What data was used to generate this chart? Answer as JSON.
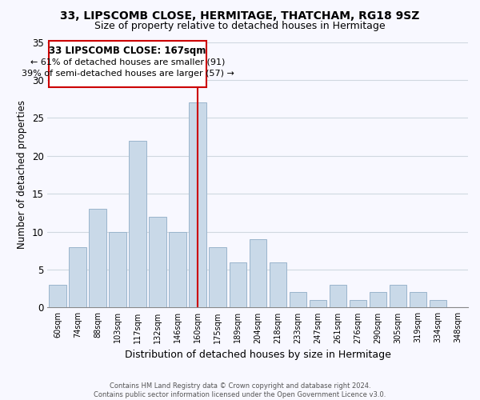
{
  "title": "33, LIPSCOMB CLOSE, HERMITAGE, THATCHAM, RG18 9SZ",
  "subtitle": "Size of property relative to detached houses in Hermitage",
  "xlabel": "Distribution of detached houses by size in Hermitage",
  "ylabel": "Number of detached properties",
  "bar_labels": [
    "60sqm",
    "74sqm",
    "88sqm",
    "103sqm",
    "117sqm",
    "132sqm",
    "146sqm",
    "160sqm",
    "175sqm",
    "189sqm",
    "204sqm",
    "218sqm",
    "233sqm",
    "247sqm",
    "261sqm",
    "276sqm",
    "290sqm",
    "305sqm",
    "319sqm",
    "334sqm",
    "348sqm"
  ],
  "bar_values": [
    3,
    8,
    13,
    10,
    22,
    12,
    10,
    27,
    8,
    6,
    9,
    6,
    2,
    1,
    3,
    1,
    2,
    3,
    2,
    1,
    0
  ],
  "bar_color": "#c9d9e8",
  "bar_edge_color": "#9ab5cc",
  "ylim": [
    0,
    35
  ],
  "yticks": [
    0,
    5,
    10,
    15,
    20,
    25,
    30,
    35
  ],
  "vline_index": 7,
  "vline_color": "#cc0000",
  "annotation_title": "33 LIPSCOMB CLOSE: 167sqm",
  "annotation_line1": "← 61% of detached houses are smaller (91)",
  "annotation_line2": "39% of semi-detached houses are larger (57) →",
  "annotation_box_facecolor": "#ffffff",
  "annotation_box_edgecolor": "#cc0000",
  "footer1": "Contains HM Land Registry data © Crown copyright and database right 2024.",
  "footer2": "Contains public sector information licensed under the Open Government Licence v3.0.",
  "background_color": "#f8f8ff",
  "grid_color": "#d0d8e0",
  "title_fontsize": 10,
  "subtitle_fontsize": 9
}
